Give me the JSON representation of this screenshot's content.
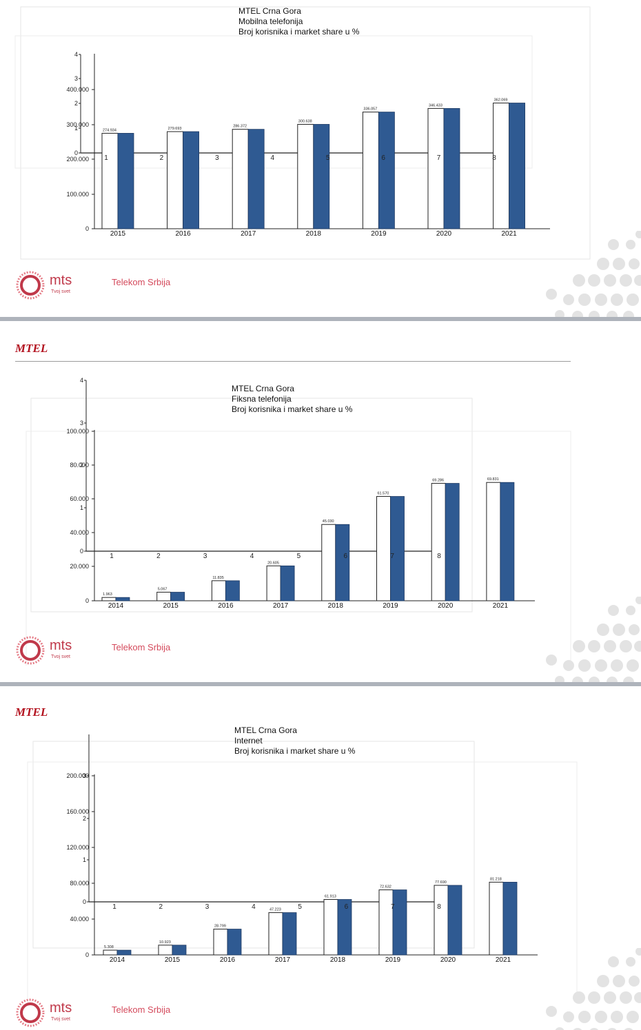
{
  "brand": {
    "header": "MTEL",
    "logo_text": "mts",
    "logo_tagline": "Tvoj svet",
    "company": "Telekom Srbija",
    "accent": "#b3121f",
    "bar_color": "#2f5a92"
  },
  "chart_data": [
    {
      "type": "bar",
      "title": "MTEL Crna Gora",
      "subtitle1": "Mobilna telefonija",
      "subtitle2": "Broj korisnika i market share u %",
      "categories": [
        "2015",
        "2016",
        "2017",
        "2018",
        "2019",
        "2020",
        "2021"
      ],
      "data_labels": [
        "274.934",
        "279.693",
        "286.372",
        "300.638",
        "336.057",
        "346.433",
        "362.069"
      ],
      "values": [
        274934,
        279693,
        286372,
        300638,
        336057,
        346433,
        362069
      ],
      "y_labels": [
        "0",
        "100.000",
        "200.000",
        "300.000",
        "400.000"
      ],
      "ylim": [
        0,
        500000
      ],
      "overlay_y_labels": [
        "0",
        "1",
        "2",
        "3",
        "4"
      ],
      "overlay_x_labels": [
        "1",
        "2",
        "3",
        "4",
        "5",
        "6",
        "7",
        "8"
      ],
      "grid": false
    },
    {
      "type": "bar",
      "title": "MTEL Crna Gora",
      "subtitle1": "Fiksna telefonija",
      "subtitle2": "Broj korisnika i market share u %",
      "categories": [
        "2014",
        "2015",
        "2016",
        "2017",
        "2018",
        "2019",
        "2020",
        "2021"
      ],
      "data_labels": [
        "1.963",
        "5.067",
        "11.835",
        "20.605",
        "45.030",
        "61.570",
        "69.286",
        "69.831"
      ],
      "values": [
        1963,
        5067,
        11835,
        20605,
        45030,
        61570,
        69286,
        69831
      ],
      "y_labels": [
        "0",
        "20.000",
        "40.000",
        "60.000",
        "80.000",
        "100.000"
      ],
      "ylim": [
        0,
        100000
      ],
      "overlay_y_labels": [
        "0",
        "1",
        "2",
        "3",
        "4"
      ],
      "overlay_x_labels": [
        "1",
        "2",
        "3",
        "4",
        "5",
        "6",
        "7",
        "8"
      ],
      "grid": false
    },
    {
      "type": "bar",
      "title": "MTEL Crna Gora",
      "subtitle1": "Internet",
      "subtitle2": "Broj korisnika i market share u %",
      "categories": [
        "2014",
        "2015",
        "2016",
        "2017",
        "2018",
        "2019",
        "2020",
        "2021"
      ],
      "data_labels": [
        "5.308",
        "10.923",
        "28.799",
        "47.223",
        "61.913",
        "72.632",
        "77.690",
        "81.218"
      ],
      "values": [
        5308,
        10923,
        28799,
        47223,
        61913,
        72632,
        77690,
        81218
      ],
      "y_labels": [
        "0",
        "40.000",
        "80.000",
        "120.000",
        "160.000",
        "200.000"
      ],
      "ylim": [
        0,
        200000
      ],
      "overlay_y_labels": [
        "0",
        "1",
        "2",
        "3"
      ],
      "overlay_x_labels": [
        "1",
        "2",
        "3",
        "4",
        "5",
        "6",
        "7",
        "8"
      ],
      "grid": false
    }
  ]
}
